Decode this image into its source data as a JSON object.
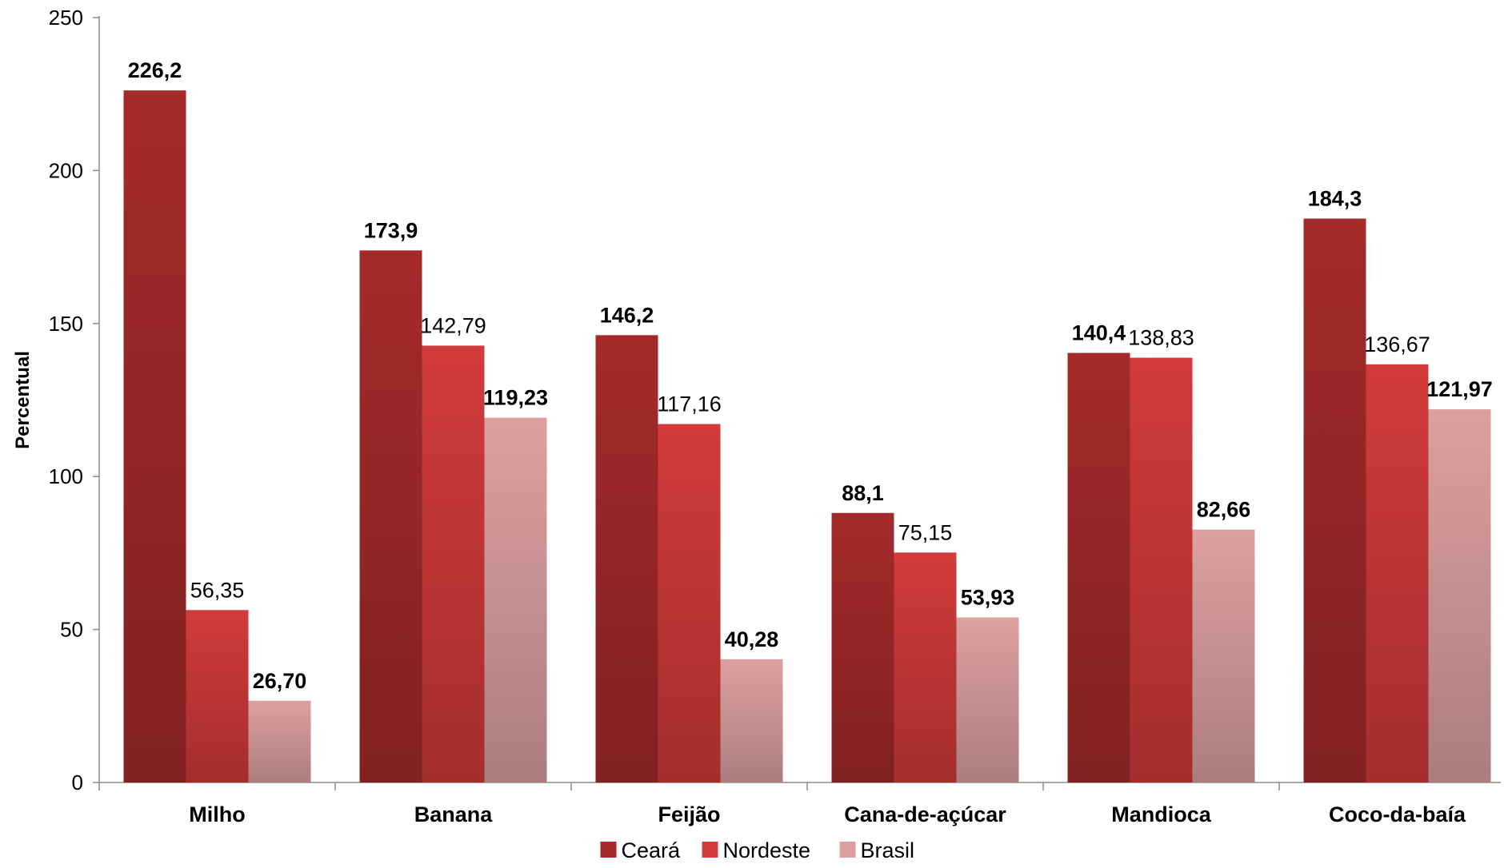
{
  "chart_data": {
    "type": "bar",
    "title": "",
    "xlabel": "",
    "ylabel": "Percentual",
    "ylim": [
      0,
      250
    ],
    "yticks": [
      0,
      50,
      100,
      150,
      200,
      250
    ],
    "grid": false,
    "legend_position": "bottom",
    "categories": [
      "Milho",
      "Banana",
      "Feijão",
      "Cana-de-açúcar",
      "Mandioca",
      "Coco-da-baía"
    ],
    "series": [
      {
        "name": "Ceará",
        "color": "#a52a2a",
        "values": [
          226.2,
          173.9,
          146.2,
          88.1,
          140.4,
          184.3
        ],
        "labels": [
          "226,2",
          "173,9",
          "146,2",
          "88,1",
          "140,4",
          "184,3"
        ],
        "label_bold": true
      },
      {
        "name": "Nordeste",
        "color": "#d23b3b",
        "values": [
          56.35,
          142.79,
          117.16,
          75.15,
          138.83,
          136.67
        ],
        "labels": [
          "56,35",
          "142,79",
          "117,16",
          "75,15",
          "138,83",
          "136,67"
        ],
        "label_bold": false
      },
      {
        "name": "Brasil",
        "color": "#dda0a0",
        "values": [
          26.7,
          119.23,
          40.28,
          53.93,
          82.66,
          121.97
        ],
        "labels": [
          "26,70",
          "119,23",
          "40,28",
          "53,93",
          "82,66",
          "121,97"
        ],
        "label_bold": true
      }
    ]
  }
}
